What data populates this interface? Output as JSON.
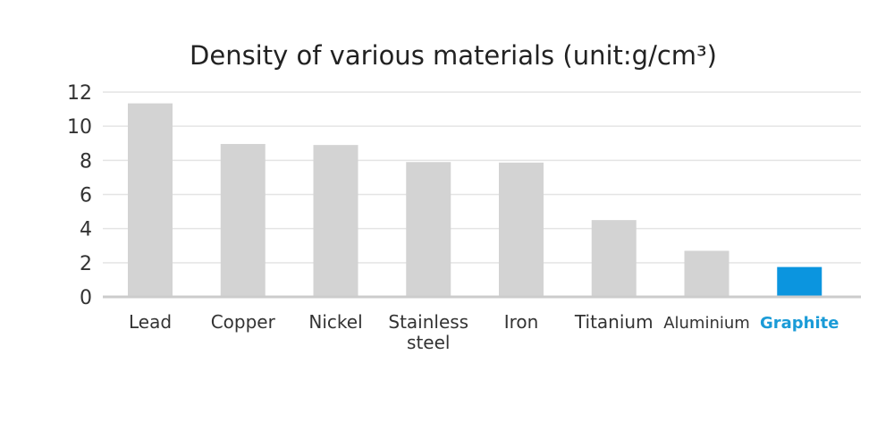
{
  "chart_data": {
    "type": "bar",
    "title": "Density of various materials (unit:g/cm³)",
    "categories": [
      "Lead",
      "Copper",
      "Nickel",
      "Stainless steel",
      "Iron",
      "Titanium",
      "Aluminium",
      "Graphite"
    ],
    "category_lines": [
      [
        "Lead"
      ],
      [
        "Copper"
      ],
      [
        "Nickel"
      ],
      [
        "Stainless",
        "steel"
      ],
      [
        "Iron"
      ],
      [
        "Titanium"
      ],
      [
        "Aluminium"
      ],
      [
        "Graphite"
      ]
    ],
    "values": [
      11.34,
      8.96,
      8.9,
      7.9,
      7.87,
      4.5,
      2.7,
      1.75
    ],
    "ylim": [
      0,
      12
    ],
    "yticks": [
      0,
      2,
      4,
      6,
      8,
      10,
      12
    ],
    "grid": true,
    "highlight_category": "Graphite",
    "colors": {
      "bar": "#d3d3d3",
      "highlight": "#0b95df",
      "grid": "#e4e4e4",
      "axis": "#cccccc",
      "highlight_label": "#1a9bd7"
    }
  }
}
